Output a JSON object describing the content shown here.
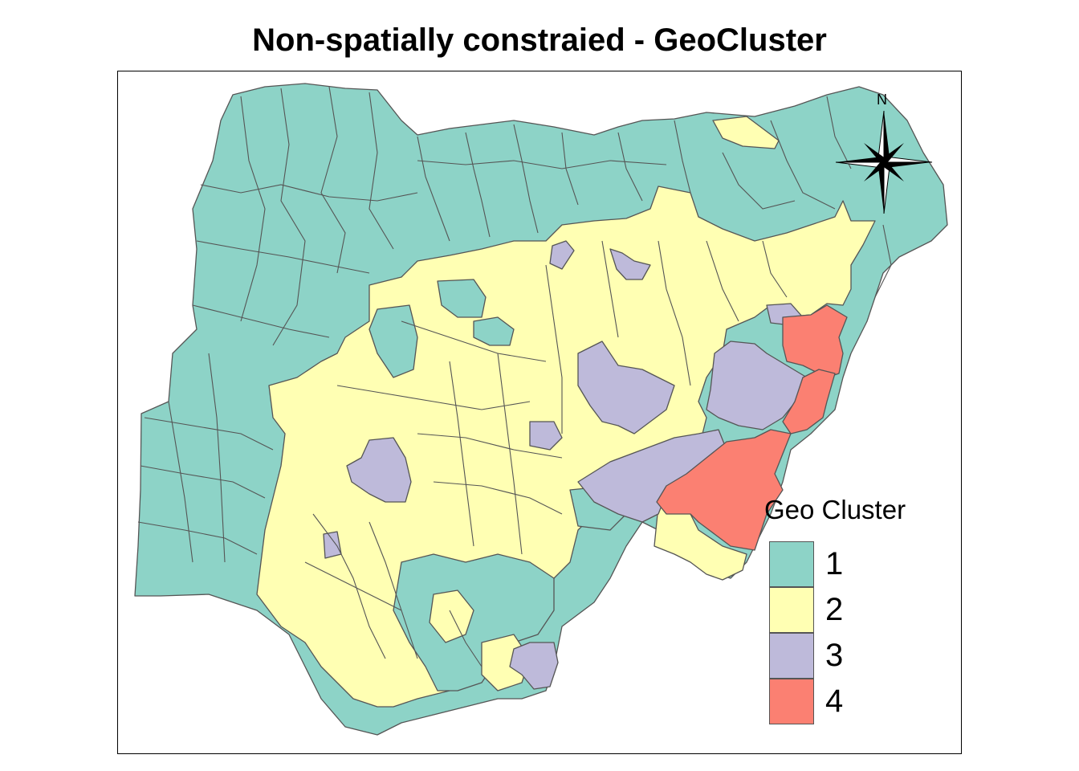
{
  "title": "Non-spatially constraied - GeoCluster",
  "legend": {
    "title": "Geo Cluster",
    "items": [
      {
        "label": "1",
        "color": "#8DD3C7"
      },
      {
        "label": "2",
        "color": "#FFFFB3"
      },
      {
        "label": "3",
        "color": "#BEBADA"
      },
      {
        "label": "4",
        "color": "#FB8072"
      }
    ]
  },
  "north_arrow": {
    "label": "N",
    "icon": "north-arrow-compass-icon"
  },
  "map": {
    "region": "Nigeria LGAs",
    "border_color": "#555555"
  }
}
